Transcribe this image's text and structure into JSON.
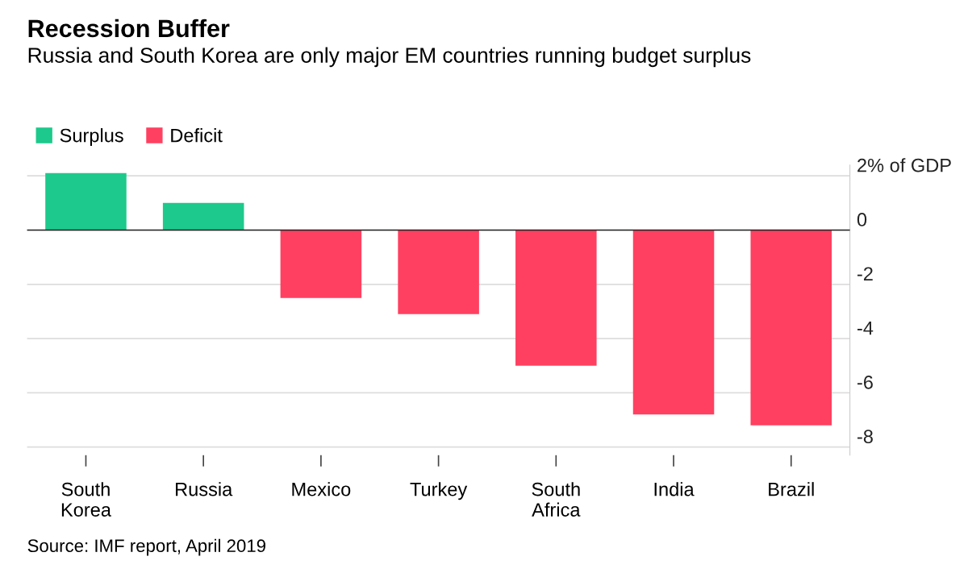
{
  "chart_data": {
    "type": "bar",
    "title": "Recession Buffer",
    "subtitle": "Russia and South Korea are only major EM countries running budget surplus",
    "categories": [
      "South Korea",
      "Russia",
      "Mexico",
      "Turkey",
      "South Africa",
      "India",
      "Brazil"
    ],
    "series": [
      {
        "name": "Surplus",
        "color": "#1dc98c",
        "values": [
          2.1,
          1.0,
          null,
          null,
          null,
          null,
          null
        ]
      },
      {
        "name": "Deficit",
        "color": "#ff4060",
        "values": [
          null,
          null,
          -2.5,
          -3.1,
          -5.0,
          -6.8,
          -7.2
        ]
      }
    ],
    "ylim": [
      -8.3,
      2.4
    ],
    "yticks": [
      {
        "value": 2,
        "label": "2% of GDP"
      },
      0,
      -2,
      -4,
      -6,
      -8
    ],
    "grid": "y",
    "legend": "top left",
    "annotations": [
      "Source: IMF report, April 2019"
    ]
  }
}
